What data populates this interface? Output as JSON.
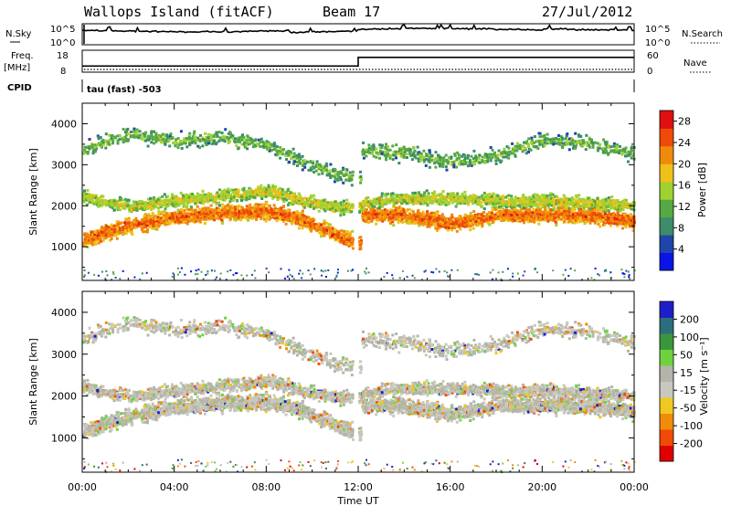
{
  "header": {
    "left_title": "Wallops Island (fitACF)",
    "center_title": "Beam 17",
    "right_title": "27/Jul/2012"
  },
  "top_panels": {
    "nsky_label": "N.Sky",
    "nsearch_label": "N.Search",
    "noise_ticks_top": "10^5",
    "noise_ticks_bottom": "10^0",
    "freq_label": "Freq.",
    "freq_unit": "[MHz]",
    "freq_ticks": [
      "18",
      "8"
    ],
    "nave_label": "Nave",
    "nave_ticks": [
      "60",
      "0"
    ],
    "cpid_label": "CPID",
    "cpid_text": "tau (fast) -503",
    "freq_mhz_segments": [
      {
        "from": "00:00",
        "to": "12:00",
        "value": 10.5
      },
      {
        "from": "12:00",
        "to": "24:00",
        "value": 15.5
      }
    ]
  },
  "colors": {
    "power_scale": [
      "#0a14e6",
      "#1e46aa",
      "#3d8c6a",
      "#55a843",
      "#9fd231",
      "#f0c018",
      "#f08a0c",
      "#f04a08",
      "#e01010"
    ],
    "velocity_scale": [
      "#e00000",
      "#f04a06",
      "#f08c0a",
      "#f0c820",
      "#c8c8be",
      "#b4b4aa",
      "#6ed23c",
      "#3c963c",
      "#2d6e7e",
      "#1e1ec8"
    ],
    "noise_line": "#000000"
  },
  "chart_data": [
    {
      "type": "heatmap",
      "title": "",
      "xlabel": "Time UT",
      "ylabel": "Slant Range [km]",
      "x_ticks": [
        "00:00",
        "04:00",
        "08:00",
        "12:00",
        "16:00",
        "20:00",
        "00:00"
      ],
      "y_ticks": [
        "1000",
        "2000",
        "3000",
        "4000"
      ],
      "xlim": [
        "00:00",
        "24:00"
      ],
      "ylim": [
        180,
        4500
      ],
      "colorbar_label": "Power [dB]",
      "colorbar_ticks": [
        "28",
        "24",
        "20",
        "16",
        "12",
        "8",
        "4"
      ],
      "colorbar_range": [
        0,
        30
      ],
      "scatter_bands": [
        {
          "time": [
            0,
            2,
            4,
            6,
            8,
            9.5,
            11,
            12,
            12,
            14,
            16,
            18,
            20,
            22,
            24
          ],
          "range_km": [
            1200,
            1550,
            1750,
            1850,
            1900,
            1700,
            1300,
            1100,
            1800,
            1800,
            1600,
            1800,
            1800,
            1800,
            1650
          ],
          "value": 24
        },
        {
          "time": [
            0,
            2,
            4,
            6,
            8,
            9.5,
            11,
            12,
            12,
            14,
            16,
            18,
            20,
            22,
            24
          ],
          "range_km": [
            2250,
            2000,
            2150,
            2250,
            2400,
            2150,
            2000,
            2000,
            2100,
            2200,
            2200,
            2150,
            2150,
            2100,
            2050
          ],
          "value": 17
        },
        {
          "time": [
            0,
            2,
            4,
            6,
            8,
            9.5,
            11,
            12,
            12,
            14,
            16,
            18,
            20,
            22,
            24
          ],
          "range_km": [
            3400,
            3800,
            3600,
            3700,
            3500,
            3100,
            2800,
            2700,
            3400,
            3300,
            3100,
            3250,
            3650,
            3550,
            3300
          ],
          "value": 13
        }
      ]
    },
    {
      "type": "heatmap",
      "title": "",
      "xlabel": "Time UT",
      "ylabel": "Slant Range [km]",
      "x_ticks": [
        "00:00",
        "04:00",
        "08:00",
        "12:00",
        "16:00",
        "20:00",
        "00:00"
      ],
      "y_ticks": [
        "1000",
        "2000",
        "3000",
        "4000"
      ],
      "xlim": [
        "00:00",
        "24:00"
      ],
      "ylim": [
        180,
        4500
      ],
      "colorbar_label": "Velocity [m s⁻¹]",
      "colorbar_ticks": [
        "200",
        "100",
        "50",
        "15",
        "-15",
        "-50",
        "-100",
        "-200"
      ],
      "colorbar_range": [
        -250,
        250
      ],
      "dominant_value_range": [
        -15,
        15
      ]
    }
  ]
}
